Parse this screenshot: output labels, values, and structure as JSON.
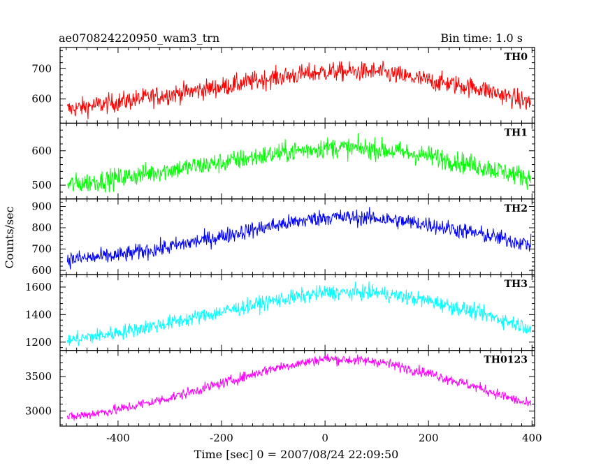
{
  "header": {
    "left_title": "ae070824220950_wam3_trn",
    "right_title": "Bin time: 1.0 s"
  },
  "chart_data": {
    "type": "line",
    "title": "ae070824220950_wam3_trn",
    "subtitle": "Bin time: 1.0 s",
    "xlabel": "Time [sec] 0 = 2007/08/24 22:09:50",
    "ylabel": "Counts/sec",
    "xlim": [
      -512,
      405
    ],
    "xticks": [
      -400,
      -200,
      0,
      200,
      400
    ],
    "grid": false,
    "panels": [
      {
        "name": "TH0",
        "color": "#ff0000",
        "ylim": [
          520,
          770
        ],
        "yticks": [
          600,
          700
        ],
        "profile": {
          "x": [
            -500,
            -400,
            -300,
            -200,
            -100,
            0,
            100,
            200,
            300,
            400
          ],
          "y": [
            565,
            590,
            615,
            640,
            670,
            690,
            690,
            660,
            635,
            585
          ]
        },
        "noise": 32
      },
      {
        "name": "TH1",
        "color": "#00ff00",
        "ylim": [
          460,
          680
        ],
        "yticks": [
          500,
          600
        ],
        "profile": {
          "x": [
            -500,
            -400,
            -300,
            -200,
            -100,
            0,
            100,
            200,
            300,
            400
          ],
          "y": [
            500,
            520,
            545,
            565,
            590,
            610,
            605,
            585,
            555,
            520
          ]
        },
        "noise": 30
      },
      {
        "name": "TH2",
        "color": "#0000ff",
        "ylim": [
          580,
          935
        ],
        "yticks": [
          600,
          700,
          800,
          900
        ],
        "profile": {
          "x": [
            -500,
            -400,
            -300,
            -200,
            -100,
            0,
            100,
            200,
            300,
            400
          ],
          "y": [
            650,
            670,
            710,
            760,
            810,
            850,
            845,
            815,
            770,
            720
          ]
        },
        "noise": 38
      },
      {
        "name": "TH3",
        "color": "#00ffff",
        "ylim": [
          1140,
          1690
        ],
        "yticks": [
          1200,
          1400,
          1600
        ],
        "profile": {
          "x": [
            -500,
            -400,
            -300,
            -200,
            -100,
            0,
            100,
            200,
            300,
            400
          ],
          "y": [
            1210,
            1270,
            1340,
            1420,
            1500,
            1560,
            1560,
            1500,
            1410,
            1300
          ]
        },
        "noise": 55
      },
      {
        "name": "TH0123",
        "color": "#ff00ff",
        "ylim": [
          2780,
          3880
        ],
        "yticks": [
          3000,
          3500
        ],
        "profile": {
          "x": [
            -500,
            -400,
            -300,
            -200,
            -100,
            0,
            100,
            200,
            300,
            400
          ],
          "y": [
            2900,
            3020,
            3190,
            3400,
            3620,
            3760,
            3720,
            3550,
            3330,
            3080
          ]
        },
        "noise": 75
      }
    ]
  }
}
